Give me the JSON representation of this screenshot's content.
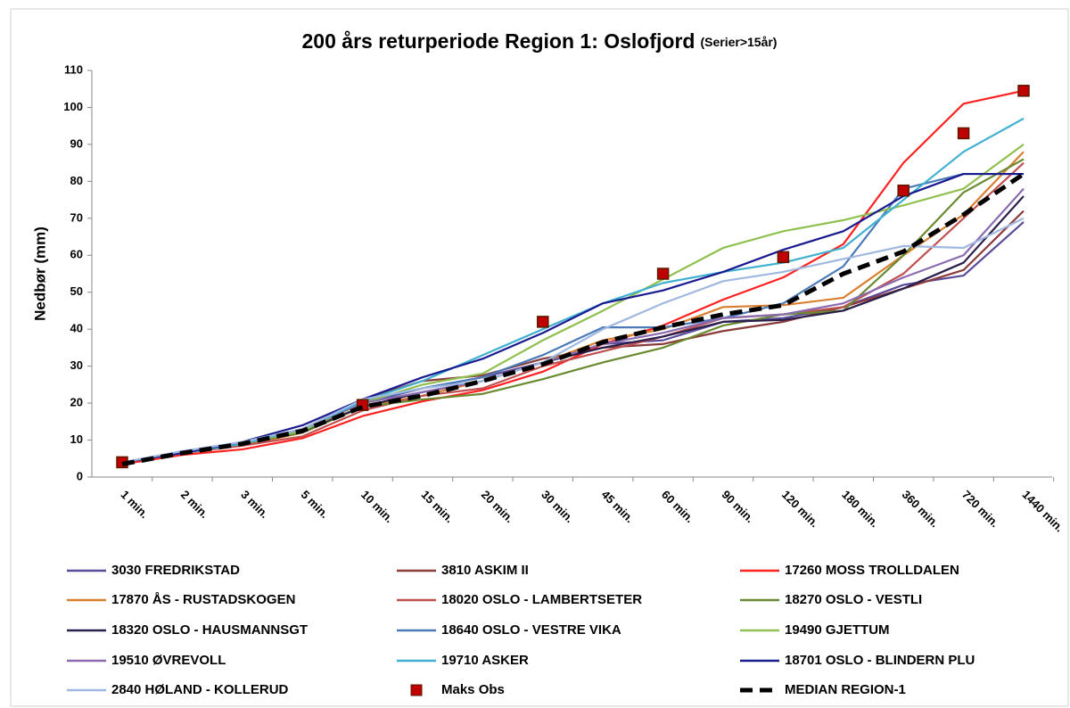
{
  "chart_data": {
    "type": "line",
    "title": "200 års returperiode Region 1:  Oslofjord",
    "subtitle": "(Serier>15år)",
    "y_label": "Nedbør (mm)",
    "categories": [
      "1 min.",
      "2 min.",
      "3 min.",
      "5 min.",
      "10 min.",
      "15 min.",
      "20 min.",
      "30 min.",
      "45 min.",
      "60 min.",
      "90 min.",
      "120 min.",
      "180 min.",
      "360 min.",
      "720 min.",
      "1440 min."
    ],
    "ylim": [
      0,
      110
    ],
    "yticks": [
      0,
      10,
      20,
      30,
      40,
      50,
      60,
      70,
      80,
      90,
      100,
      110
    ],
    "grid": false,
    "legend": "bottom",
    "series": [
      {
        "name": "3030 FREDRIKSTAD",
        "color": "#5a4a9a",
        "values": [
          4,
          6.5,
          9,
          13,
          20,
          24,
          27,
          31,
          36,
          37,
          42,
          43,
          46,
          52,
          54.5,
          69
        ]
      },
      {
        "name": "3810 ASKIM II",
        "color": "#8b3a3a",
        "values": [
          4,
          6.5,
          9,
          13,
          21,
          26,
          27.5,
          32,
          35,
          36,
          39.5,
          42,
          46,
          51,
          56,
          72
        ]
      },
      {
        "name": "17260 MOSS TROLLDALEN",
        "color": "#ff2020",
        "values": [
          3.5,
          6,
          7.5,
          10.5,
          16.5,
          20.5,
          23.5,
          28.5,
          36,
          41,
          48,
          54,
          63,
          85,
          101,
          104.5
        ]
      },
      {
        "name": "17870 ÅS - RUSTADSKOGEN",
        "color": "#d98030",
        "values": [
          4,
          6.5,
          8.5,
          12,
          19,
          22,
          26,
          31,
          37,
          40,
          46,
          46.5,
          48.5,
          60,
          71,
          88
        ]
      },
      {
        "name": "18020 OSLO - LAMBERTSETER",
        "color": "#c05050",
        "values": [
          4,
          6.5,
          8.5,
          11,
          18,
          22,
          24,
          30,
          34,
          38,
          43,
          44,
          46,
          55,
          70,
          85
        ]
      },
      {
        "name": "18270 OSLO - VESTLI",
        "color": "#6a8a30",
        "values": [
          4,
          6.5,
          9,
          12,
          19,
          21,
          22.5,
          26.5,
          31,
          35,
          41,
          44,
          45,
          60,
          77,
          86
        ]
      },
      {
        "name": "18320 OSLO - HAUSMANNSGT",
        "color": "#2a1e4a",
        "values": [
          4,
          6.5,
          9,
          12.5,
          19,
          23,
          26,
          31,
          35,
          38,
          42,
          42.5,
          45,
          51,
          58,
          76
        ]
      },
      {
        "name": "18640 OSLO - VESTRE VIKA",
        "color": "#4a7ab8",
        "values": [
          4,
          6.5,
          9,
          13,
          20.5,
          24,
          27,
          33,
          40.5,
          40.5,
          43,
          47,
          57,
          78,
          82,
          82
        ]
      },
      {
        "name": "19490 GJETTUM",
        "color": "#90c050",
        "values": [
          4,
          6.5,
          9,
          12.5,
          20,
          25,
          28,
          37,
          45,
          53.5,
          62,
          66.5,
          69.5,
          73.5,
          78,
          90
        ]
      },
      {
        "name": "19510 ØVREVOLL",
        "color": "#8a6ab0",
        "values": [
          4,
          6.5,
          9,
          13,
          20,
          23,
          26,
          31,
          36,
          39,
          43,
          44,
          47,
          54,
          60,
          78
        ]
      },
      {
        "name": "19710 ASKER",
        "color": "#40b0d0",
        "values": [
          4,
          6.5,
          9,
          13,
          20.5,
          26,
          33,
          40,
          47,
          52.5,
          55.5,
          58,
          62,
          75,
          88,
          97
        ]
      },
      {
        "name": "18701 OSLO - BLINDERN PLU",
        "color": "#1a1a90",
        "values": [
          4,
          6.5,
          9.5,
          14,
          21,
          27,
          32,
          39,
          47,
          50.5,
          55.5,
          61.5,
          66.5,
          76,
          82,
          82
        ]
      },
      {
        "name": "2840 HØLAND - KOLLERUD",
        "color": "#a0b8e0",
        "values": [
          4,
          7,
          9.5,
          13,
          21,
          24,
          26,
          31,
          40,
          47,
          53,
          55.5,
          59,
          62.5,
          62,
          70
        ]
      },
      {
        "name": "Maks Obs",
        "color": "#c00000",
        "marker": "square",
        "line": false,
        "values": [
          4,
          null,
          null,
          null,
          19.5,
          null,
          null,
          42,
          null,
          55,
          null,
          59.5,
          null,
          77.5,
          93,
          104.5
        ]
      },
      {
        "name": "MEDIAN REGION-1",
        "color": "#000000",
        "dash": true,
        "values": [
          3.5,
          6.5,
          9,
          12.5,
          19,
          22,
          26,
          30.5,
          36.5,
          40.5,
          44,
          46.5,
          55,
          61,
          71,
          82
        ]
      }
    ]
  }
}
